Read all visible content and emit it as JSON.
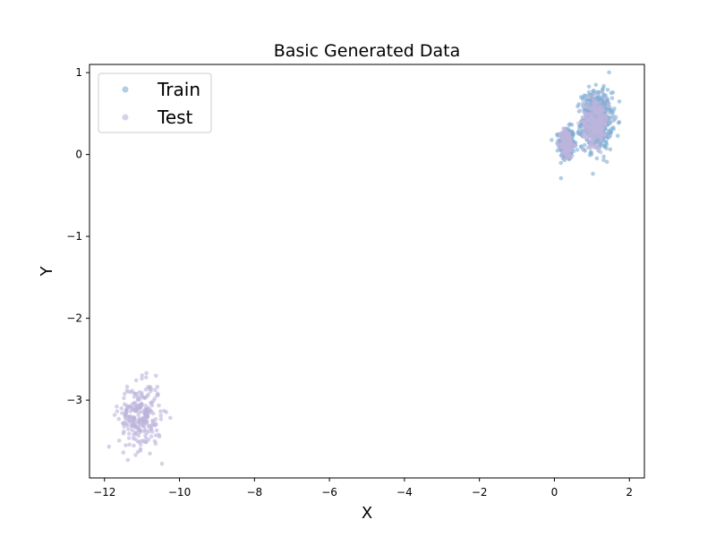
{
  "chart_data": {
    "type": "scatter",
    "title": "Basic Generated Data",
    "xlabel": "X",
    "ylabel": "Y",
    "xlim": [
      -12.4,
      2.4
    ],
    "ylim": [
      -3.95,
      1.1
    ],
    "xticks": [
      -12,
      -10,
      -8,
      -6,
      -4,
      -2,
      0,
      2
    ],
    "yticks": [
      -3,
      -2,
      -1,
      0,
      1
    ],
    "grid": false,
    "legend_position": "upper-left",
    "series": [
      {
        "name": "Train",
        "color": "#7eaed3",
        "clusters": [
          {
            "center": [
              0.33,
              0.13
            ],
            "std": [
              0.1,
              0.1
            ],
            "count": 300
          },
          {
            "center": [
              1.13,
              0.42
            ],
            "std": [
              0.2,
              0.17
            ],
            "count": 600
          }
        ]
      },
      {
        "name": "Test",
        "color": "#bdb4dc",
        "clusters": [
          {
            "center": [
              0.33,
              0.13
            ],
            "std": [
              0.08,
              0.09
            ],
            "count": 180
          },
          {
            "center": [
              1.1,
              0.4
            ],
            "std": [
              0.17,
              0.14
            ],
            "count": 280
          },
          {
            "center": [
              -11.05,
              -3.2
            ],
            "std": [
              0.28,
              0.2
            ],
            "count": 260
          }
        ]
      }
    ]
  }
}
